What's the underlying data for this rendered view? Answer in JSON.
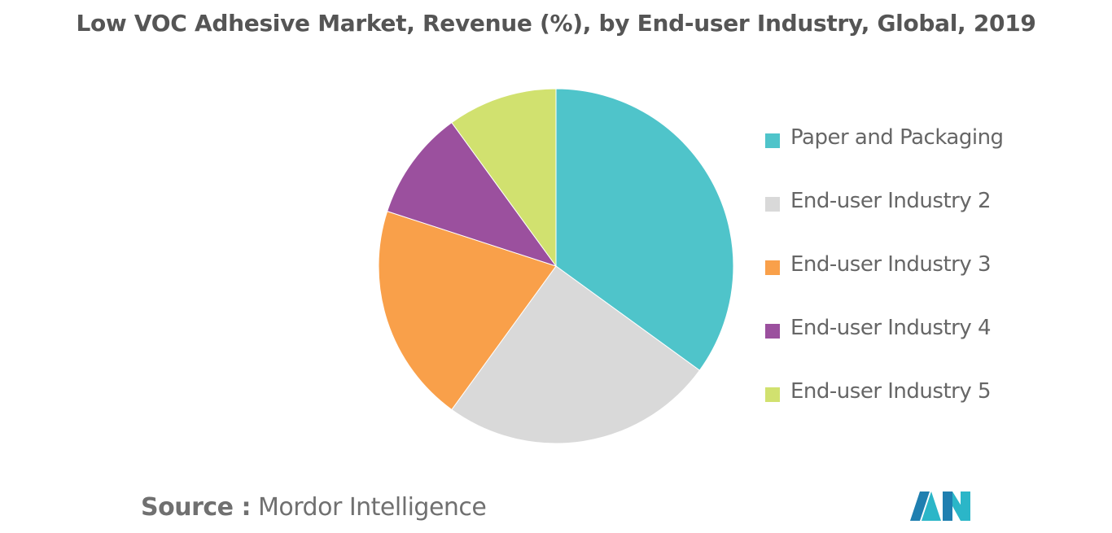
{
  "chart_data": {
    "type": "pie",
    "title": "Low VOC Adhesive Market, Revenue (%), by End-user Industry, Global, 2019",
    "categories": [
      "Paper and Packaging",
      "End-user Industry 2",
      "End-user Industry 3",
      "End-user Industry 4",
      "End-user Industry 5"
    ],
    "values": [
      35,
      25,
      20,
      10,
      10
    ],
    "colors": [
      "#4FC4CA",
      "#D9D9D9",
      "#F9A04A",
      "#9B509E",
      "#D1E16F"
    ],
    "legend_position": "right"
  },
  "source": {
    "prefix": "Source :",
    "text": "Mordor Intelligence"
  },
  "logo": {
    "icon": "mordor-intelligence-logo",
    "colors": [
      "#1F7FB0",
      "#2BB6C8"
    ]
  }
}
